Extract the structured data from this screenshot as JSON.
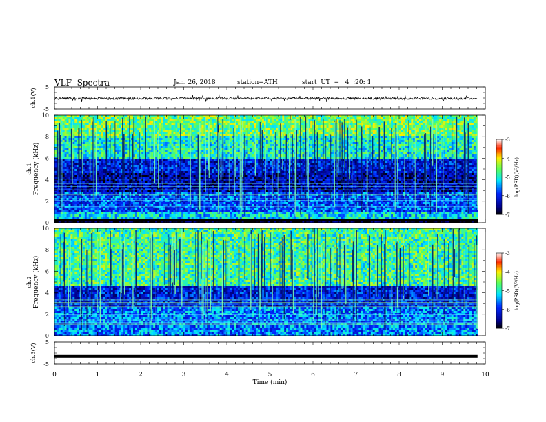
{
  "header": {
    "title": "VLF  Spectra",
    "date": "Jan. 26, 2018",
    "station": "station=ATH",
    "start": "start  UT  =   4  :20: 1"
  },
  "chart_data": [
    {
      "type": "line",
      "panel": "ch1-voltage",
      "ylabel": "ch.1(V)",
      "yticks": [
        "5",
        "-5"
      ],
      "ylim": [
        -5,
        5
      ],
      "baseline": 0,
      "description_values": {
        "mean": -0.2,
        "range": [
          -1.9,
          1.5
        ]
      }
    },
    {
      "type": "heatmap",
      "panel": "ch1-spectrogram",
      "ylabel_top": "ch.1",
      "ylabel": "Frequency (kHz)",
      "yticks": [
        "0",
        "2",
        "4",
        "6",
        "8",
        "10"
      ],
      "ylim": [
        0,
        10
      ],
      "colorbar": {
        "label": "log(PSD)(V²/Hz)",
        "ticks": [
          "-3",
          "-4",
          "-5",
          "-6",
          "-7"
        ],
        "range": [
          -7,
          -3
        ]
      },
      "bands_khz": [
        {
          "from": 0,
          "to": 0.3,
          "level": -7
        },
        {
          "from": 0.3,
          "to": 1.0,
          "level": -5.2
        },
        {
          "from": 1.0,
          "to": 2.8,
          "level": -5.8
        },
        {
          "from": 2.8,
          "to": 4.6,
          "level": -6.4
        },
        {
          "from": 4.6,
          "to": 5.9,
          "level": -6.1
        },
        {
          "from": 5.9,
          "to": 8.0,
          "level": -5.0
        },
        {
          "from": 8.0,
          "to": 10.0,
          "level": -4.6
        }
      ]
    },
    {
      "type": "heatmap",
      "panel": "ch2-spectrogram",
      "ylabel_top": "ch.2",
      "ylabel": "Frequency (kHz)",
      "yticks": [
        "0",
        "2",
        "4",
        "6",
        "8",
        "10"
      ],
      "ylim": [
        0,
        10
      ],
      "colorbar": {
        "label": "log(PSD)(V²/Hz)",
        "ticks": [
          "-3",
          "-4",
          "-5",
          "-6",
          "-7"
        ],
        "range": [
          -7,
          -3
        ]
      },
      "bands_khz": [
        {
          "from": 0,
          "to": 2.6,
          "level": -5.6
        },
        {
          "from": 2.6,
          "to": 4.6,
          "level": -6.1
        },
        {
          "from": 4.6,
          "to": 10.0,
          "level": -4.8
        }
      ]
    },
    {
      "type": "line",
      "panel": "ch3-voltage",
      "ylabel": "ch.3(V)",
      "yticks": [
        "5",
        "-5"
      ],
      "ylim": [
        -5,
        5
      ],
      "baseline": -1.5
    }
  ],
  "x_axis": {
    "label": "Time  (min)",
    "ticks": [
      "0",
      "1",
      "2",
      "3",
      "4",
      "5",
      "6",
      "7",
      "8",
      "9",
      "10"
    ],
    "xlim": [
      0,
      10
    ],
    "data_end": 9.82
  }
}
